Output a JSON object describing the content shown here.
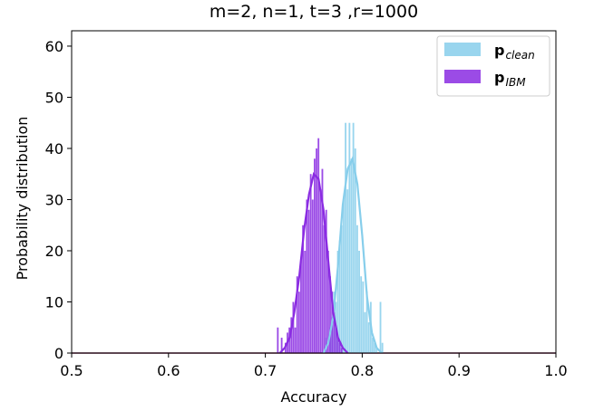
{
  "chart_data": {
    "type": "bar",
    "title": "m=2, n=1, t=3 ,r=1000",
    "xlabel": "Accuracy",
    "ylabel": "Probability distribution",
    "xlim": [
      0.5,
      1.0
    ],
    "ylim": [
      0,
      63
    ],
    "xticks": [
      "0.5",
      "0.6",
      "0.7",
      "0.8",
      "0.9",
      "1.0"
    ],
    "yticks": [
      "0",
      "10",
      "20",
      "30",
      "40",
      "50",
      "60"
    ],
    "grid": false,
    "legend_position": "top-right",
    "legend": [
      {
        "main": "p",
        "sub": "clean",
        "color": "#87ceeb"
      },
      {
        "main": "p",
        "sub": "IBM",
        "color": "#8a2be2"
      }
    ],
    "bin_width": 0.002,
    "series": [
      {
        "name": "p_clean",
        "color": "#87ceeb",
        "bins": [
          [
            0.762,
            3
          ],
          [
            0.766,
            5
          ],
          [
            0.768,
            7
          ],
          [
            0.77,
            12
          ],
          [
            0.772,
            10
          ],
          [
            0.774,
            20
          ],
          [
            0.776,
            22
          ],
          [
            0.778,
            25
          ],
          [
            0.78,
            30
          ],
          [
            0.782,
            45
          ],
          [
            0.784,
            32
          ],
          [
            0.786,
            45
          ],
          [
            0.788,
            38
          ],
          [
            0.79,
            45
          ],
          [
            0.792,
            40
          ],
          [
            0.794,
            25
          ],
          [
            0.796,
            20
          ],
          [
            0.798,
            15
          ],
          [
            0.8,
            14
          ],
          [
            0.802,
            8
          ],
          [
            0.804,
            12
          ],
          [
            0.806,
            6
          ],
          [
            0.808,
            10
          ],
          [
            0.81,
            3
          ],
          [
            0.812,
            2
          ],
          [
            0.814,
            1
          ],
          [
            0.818,
            10
          ],
          [
            0.82,
            2
          ]
        ],
        "kde": [
          [
            0.76,
            0
          ],
          [
            0.765,
            2
          ],
          [
            0.77,
            7
          ],
          [
            0.775,
            17
          ],
          [
            0.78,
            29
          ],
          [
            0.785,
            36
          ],
          [
            0.79,
            38
          ],
          [
            0.795,
            33
          ],
          [
            0.8,
            23
          ],
          [
            0.805,
            11
          ],
          [
            0.81,
            4
          ],
          [
            0.815,
            1
          ],
          [
            0.82,
            0
          ]
        ]
      },
      {
        "name": "p_IBM",
        "color": "#8a2be2",
        "bins": [
          [
            0.712,
            5
          ],
          [
            0.716,
            3
          ],
          [
            0.72,
            2
          ],
          [
            0.722,
            4
          ],
          [
            0.724,
            5
          ],
          [
            0.726,
            7
          ],
          [
            0.728,
            10
          ],
          [
            0.73,
            5
          ],
          [
            0.732,
            15
          ],
          [
            0.734,
            12
          ],
          [
            0.736,
            18
          ],
          [
            0.738,
            25
          ],
          [
            0.74,
            20
          ],
          [
            0.742,
            30
          ],
          [
            0.744,
            28
          ],
          [
            0.746,
            35
          ],
          [
            0.748,
            30
          ],
          [
            0.75,
            38
          ],
          [
            0.752,
            40
          ],
          [
            0.754,
            42
          ],
          [
            0.756,
            32
          ],
          [
            0.758,
            36
          ],
          [
            0.76,
            25
          ],
          [
            0.762,
            28
          ],
          [
            0.764,
            20
          ],
          [
            0.766,
            15
          ],
          [
            0.768,
            12
          ],
          [
            0.77,
            8
          ],
          [
            0.772,
            5
          ],
          [
            0.774,
            3
          ],
          [
            0.776,
            2
          ],
          [
            0.778,
            1
          ]
        ],
        "kde": [
          [
            0.715,
            0
          ],
          [
            0.72,
            1
          ],
          [
            0.725,
            3
          ],
          [
            0.73,
            8
          ],
          [
            0.735,
            15
          ],
          [
            0.74,
            24
          ],
          [
            0.745,
            31
          ],
          [
            0.75,
            35
          ],
          [
            0.755,
            34
          ],
          [
            0.76,
            28
          ],
          [
            0.765,
            18
          ],
          [
            0.77,
            8
          ],
          [
            0.775,
            3
          ],
          [
            0.78,
            1
          ],
          [
            0.785,
            0
          ]
        ]
      }
    ]
  }
}
